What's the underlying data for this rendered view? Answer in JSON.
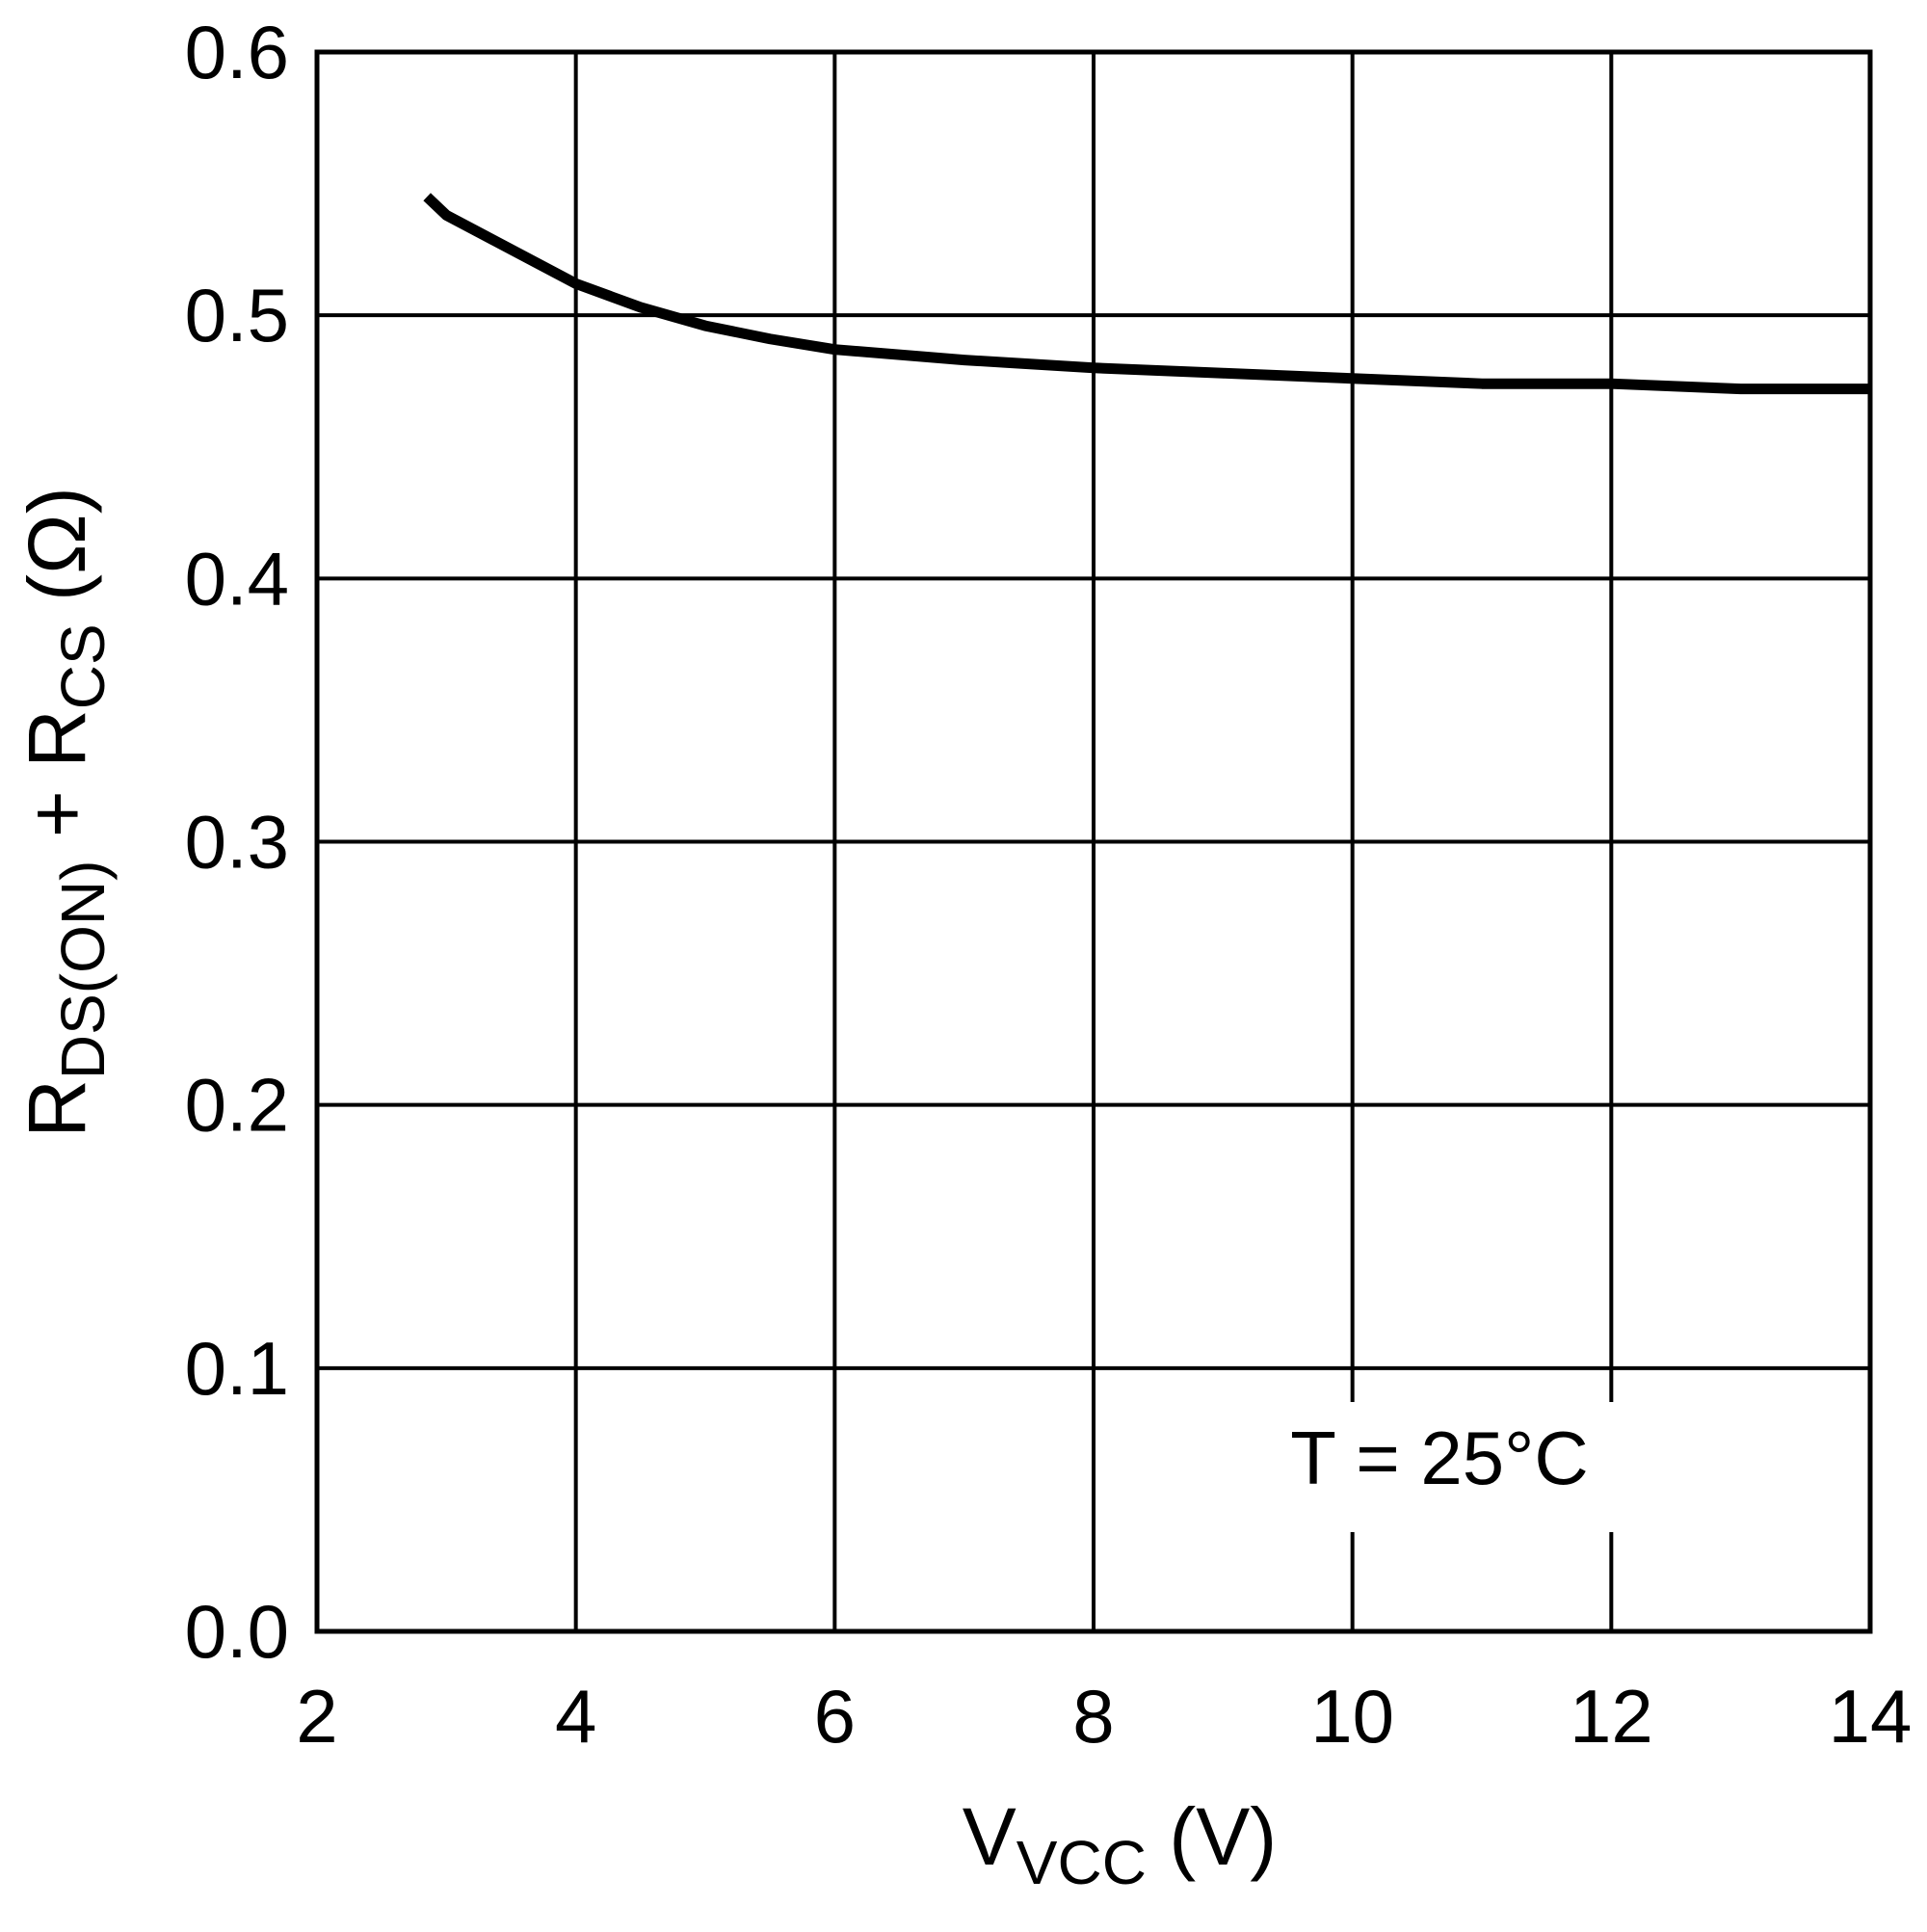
{
  "chart_data": {
    "type": "line",
    "xlabel": [
      {
        "text": "V"
      },
      {
        "text": "VCC",
        "sub": true
      },
      {
        "text": " (V)"
      }
    ],
    "ylabel": [
      {
        "text": "R"
      },
      {
        "text": "DS(ON)",
        "sub": true
      },
      {
        "text": " + R"
      },
      {
        "text": "CS",
        "sub": true
      },
      {
        "text": " (Ω)"
      }
    ],
    "annotation": "T = 25°C",
    "x": [
      2.85,
      3,
      3.5,
      4,
      4.5,
      5,
      5.5,
      6,
      7,
      8,
      9,
      10,
      11,
      12,
      13,
      14
    ],
    "series": [
      {
        "color": "#000000",
        "values": [
          0.545,
          0.538,
          0.525,
          0.512,
          0.503,
          0.496,
          0.491,
          0.487,
          0.483,
          0.48,
          0.478,
          0.476,
          0.474,
          0.474,
          0.472,
          0.472
        ]
      }
    ],
    "xlim": [
      2,
      14
    ],
    "ylim": [
      0,
      0.6
    ],
    "xticks": [
      2,
      4,
      6,
      8,
      10,
      12,
      14
    ],
    "yticks": [
      {
        "value": 0,
        "label": "0.0"
      },
      0.1,
      0.2,
      0.3,
      0.4,
      0.5,
      0.6
    ],
    "grid": true
  }
}
